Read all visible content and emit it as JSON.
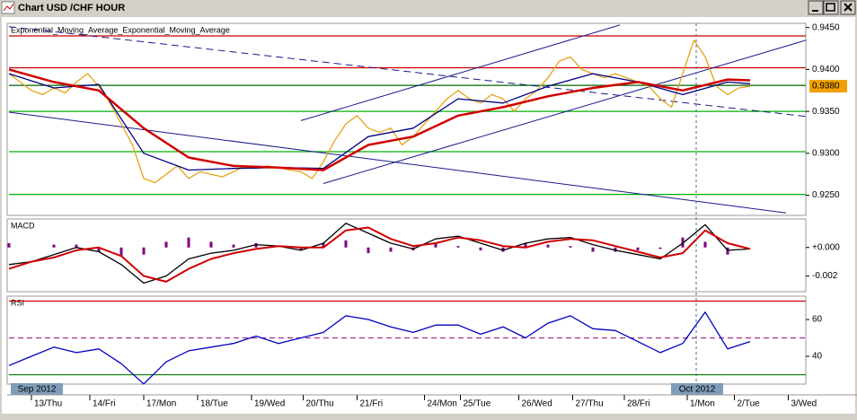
{
  "window": {
    "title": "Chart USD /CHF  HOUR"
  },
  "chart_data": [
    {
      "type": "line",
      "title": "Exponential_Moving_Average_Exponential_Moving_Average",
      "x": [
        0,
        5,
        10,
        15,
        20,
        25,
        30,
        35,
        40,
        45,
        50,
        55,
        60,
        65,
        70,
        75,
        80,
        85,
        90,
        95,
        100,
        105,
        110,
        115,
        120,
        125,
        130,
        135,
        140,
        145,
        150,
        155,
        160,
        165,
        170,
        175,
        180,
        185,
        190,
        195,
        200,
        205,
        210,
        215,
        220,
        225,
        230,
        235,
        240,
        245,
        250,
        255,
        260,
        265,
        270,
        275,
        280,
        285,
        290,
        295,
        300,
        305,
        310,
        315,
        320,
        325,
        330
      ],
      "ylim": [
        0.9226,
        0.9455
      ],
      "yticks": [
        {
          "value": 0.925,
          "label": "0.9250"
        },
        {
          "value": 0.93,
          "label": "0.9300"
        },
        {
          "value": 0.935,
          "label": "0.9350"
        },
        {
          "value": 0.94,
          "label": "0.9400"
        },
        {
          "value": 0.945,
          "label": "0.9450"
        }
      ],
      "last_price": {
        "value": 0.938,
        "label": "0.9380",
        "color": "#f0a000"
      },
      "hlines": [
        {
          "value": 0.944,
          "color": "#cc0000"
        },
        {
          "value": 0.9402,
          "color": "#cc0000"
        },
        {
          "value": 0.9381,
          "color": "#006400"
        },
        {
          "value": 0.935,
          "color": "#00b000"
        },
        {
          "value": 0.9302,
          "color": "#00b000"
        },
        {
          "value": 0.9251,
          "color": "#00b000"
        }
      ],
      "trendlines": [
        {
          "x": [
            130,
            272
          ],
          "values": [
            0.9339,
            0.9453
          ],
          "color": "#1a1a8c",
          "dash": false
        },
        {
          "x": [
            140,
            355
          ],
          "values": [
            0.9264,
            0.9435
          ],
          "color": "#1a1a8c",
          "dash": false
        },
        {
          "x": [
            0,
            346
          ],
          "values": [
            0.9349,
            0.9229
          ],
          "color": "#1a1a8c",
          "dash": false
        },
        {
          "x": [
            0,
            355
          ],
          "values": [
            0.9451,
            0.9344
          ],
          "color": "#1a1a8c",
          "dash": true
        }
      ],
      "series": [
        {
          "color": "#e8a317",
          "values": [
            0.9395,
            0.9385,
            0.9375,
            0.937,
            0.9378,
            0.9372,
            0.9385,
            0.9395,
            0.938,
            0.936,
            0.9335,
            0.931,
            0.927,
            0.9265,
            0.9275,
            0.9285,
            0.927,
            0.9278,
            0.9275,
            0.9272,
            0.9278,
            0.9285,
            0.9282,
            0.9285,
            0.9283,
            0.928,
            0.9278,
            0.927,
            0.929,
            0.9315,
            0.9335,
            0.9345,
            0.933,
            0.9325,
            0.933,
            0.931,
            0.932,
            0.9335,
            0.935,
            0.9365,
            0.9375,
            0.9365,
            0.936,
            0.937,
            0.9365,
            0.935,
            0.9365,
            0.9375,
            0.939,
            0.941,
            0.9415,
            0.94,
            0.9395,
            0.939,
            0.9395,
            0.939,
            0.9385,
            0.938,
            0.9365,
            0.9355,
            0.9395,
            0.9435,
            0.9415,
            0.938,
            0.937,
            0.9378,
            0.938
          ]
        },
        {
          "color": "#000080",
          "x": [
            0,
            20,
            40,
            60,
            80,
            100,
            120,
            140,
            160,
            180,
            200,
            220,
            240,
            260,
            280,
            300,
            320,
            330
          ],
          "values": [
            0.9395,
            0.9378,
            0.9382,
            0.93,
            0.928,
            0.9282,
            0.9283,
            0.9282,
            0.932,
            0.933,
            0.9365,
            0.936,
            0.938,
            0.9395,
            0.9385,
            0.937,
            0.9385,
            0.9383
          ]
        },
        {
          "color": "#d00000",
          "width": 2.5,
          "x": [
            0,
            20,
            40,
            60,
            80,
            100,
            120,
            140,
            160,
            180,
            200,
            220,
            240,
            260,
            280,
            300,
            320,
            330
          ],
          "values": [
            0.94,
            0.9385,
            0.9375,
            0.933,
            0.9295,
            0.9285,
            0.9283,
            0.928,
            0.931,
            0.932,
            0.9345,
            0.9355,
            0.9368,
            0.9378,
            0.9385,
            0.9375,
            0.9388,
            0.9387
          ]
        }
      ]
    },
    {
      "type": "line",
      "title": "MACD",
      "x": [
        0,
        10,
        20,
        30,
        40,
        50,
        60,
        70,
        80,
        90,
        100,
        110,
        120,
        130,
        140,
        150,
        160,
        170,
        180,
        190,
        200,
        210,
        220,
        230,
        240,
        250,
        260,
        270,
        280,
        290,
        300,
        310,
        320,
        330
      ],
      "ylim": [
        -0.0031,
        0.002
      ],
      "yticks": [
        {
          "value": -0.002,
          "label": "-0.002"
        },
        {
          "value": 0,
          "label": "+0.000"
        }
      ],
      "series": [
        {
          "type": "bar",
          "color": "#800080",
          "values": [
            0.0003,
            0,
            0.0002,
            0.0002,
            -0.0003,
            -0.0006,
            -0.0005,
            0.0004,
            0.0007,
            0.0004,
            0.0002,
            0.0003,
            0,
            -0.0002,
            0.0003,
            0.0005,
            -0.0004,
            -0.0003,
            -0.0002,
            0.0003,
            0.0001,
            -0.0002,
            -0.0003,
            0.0003,
            0.0002,
            0.0001,
            -0.0003,
            -0.0003,
            -0.0002,
            -0.0001,
            0.0007,
            0.0004,
            -0.0005,
            0
          ]
        },
        {
          "color": "#000000",
          "values": [
            -0.0012,
            -0.001,
            -0.0005,
            0.0,
            -0.0003,
            -0.0012,
            -0.0025,
            -0.002,
            -0.0008,
            -0.0004,
            -0.0002,
            0.0002,
            0.0001,
            -0.0002,
            0.0003,
            0.0017,
            0.001,
            0.0003,
            -0.0001,
            0.0006,
            0.0008,
            0.0003,
            -0.0002,
            0.0003,
            0.0006,
            0.0007,
            0.0002,
            -0.0002,
            -0.0005,
            -0.0008,
            0.0003,
            0.0016,
            -0.0002,
            -0.0001
          ]
        },
        {
          "color": "#d00000",
          "width": 2,
          "values": [
            -0.0015,
            -0.001,
            -0.0007,
            -0.0002,
            0.0,
            -0.0006,
            -0.002,
            -0.0024,
            -0.0015,
            -0.0008,
            -0.0004,
            -0.0001,
            0.0001,
            0.0,
            0.0,
            0.0012,
            0.0014,
            0.0006,
            0.0001,
            0.0003,
            0.0007,
            0.0005,
            0.0001,
            0.0,
            0.0004,
            0.0006,
            0.0005,
            0.0001,
            -0.0003,
            -0.0007,
            -0.0004,
            0.0012,
            0.0003,
            -0.0001
          ]
        }
      ]
    },
    {
      "type": "line",
      "title": "RSI",
      "x": [
        0,
        10,
        20,
        30,
        40,
        50,
        60,
        70,
        80,
        90,
        100,
        110,
        120,
        130,
        140,
        150,
        160,
        170,
        180,
        190,
        200,
        210,
        220,
        230,
        240,
        250,
        260,
        270,
        280,
        290,
        300,
        310,
        320,
        330
      ],
      "ylim": [
        24.9,
        72.7
      ],
      "yticks": [
        40,
        60
      ],
      "hlines": [
        {
          "value": 70,
          "color": "#d00000"
        },
        {
          "value": 50,
          "color": "#a0208c",
          "dash": true
        },
        {
          "value": 30,
          "color": "#008000"
        }
      ],
      "series": [
        {
          "color": "#0000c0",
          "values": [
            35,
            40,
            45,
            42,
            44,
            36,
            25,
            37,
            43,
            45,
            47,
            51,
            47,
            50,
            53,
            62,
            60,
            56,
            53,
            57,
            57,
            52,
            56,
            50,
            58,
            62,
            55,
            54,
            48,
            42,
            47,
            64,
            44,
            48
          ]
        }
      ],
      "xlim": [
        0,
        354.8
      ],
      "xticks": [
        {
          "value": 10,
          "label": "13/Thu"
        },
        {
          "value": 36,
          "label": "14/Fri"
        },
        {
          "value": 60,
          "label": "17/Mon"
        },
        {
          "value": 84,
          "label": "18/Tue"
        },
        {
          "value": 108,
          "label": "19/Wed"
        },
        {
          "value": 131,
          "label": "20/Thu"
        },
        {
          "value": 155,
          "label": "21/Fri"
        },
        {
          "value": 185,
          "label": "24/Mon"
        },
        {
          "value": 201,
          "label": "25/Tue"
        },
        {
          "value": 227,
          "label": "26/Wed"
        },
        {
          "value": 251,
          "label": "27/Thu"
        },
        {
          "value": 274,
          "label": "28/Fri"
        },
        {
          "value": 302,
          "label": "1/Mon"
        },
        {
          "value": 323,
          "label": "2/Tue"
        },
        {
          "value": 347,
          "label": "3/Wed"
        }
      ],
      "period_labels": [
        {
          "value": 0,
          "label": "Sep 2012"
        },
        {
          "value": 306,
          "label": "Oct 2012",
          "line": true
        }
      ]
    }
  ]
}
